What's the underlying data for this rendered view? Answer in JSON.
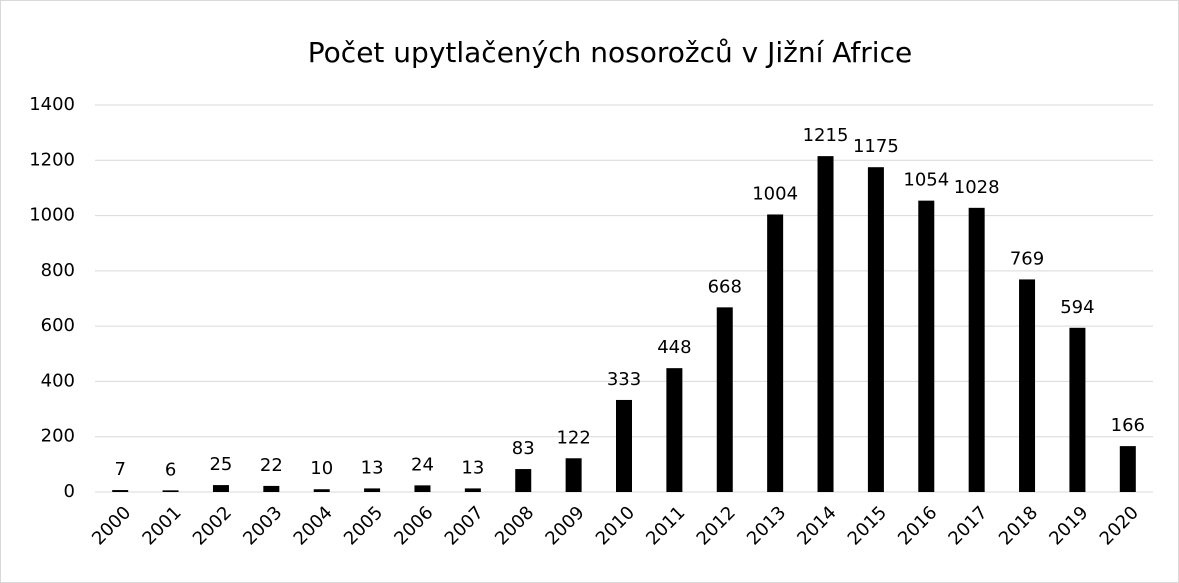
{
  "chart_data": {
    "type": "bar",
    "title": "Počet upytlačených nosorožců v Jižní Africe",
    "categories": [
      "2000",
      "2001",
      "2002",
      "2003",
      "2004",
      "2005",
      "2006",
      "2007",
      "2008",
      "2009",
      "2010",
      "2011",
      "2012",
      "2013",
      "2014",
      "2015",
      "2016",
      "2017",
      "2018",
      "2019",
      "2020"
    ],
    "values": [
      7,
      6,
      25,
      22,
      10,
      13,
      24,
      13,
      83,
      122,
      333,
      448,
      668,
      1004,
      1215,
      1175,
      1054,
      1028,
      769,
      594,
      166
    ],
    "color": "#000000",
    "ylim": [
      0,
      1400
    ],
    "yticks": [
      0,
      200,
      400,
      600,
      800,
      1000,
      1200,
      1400
    ],
    "grid": true
  }
}
